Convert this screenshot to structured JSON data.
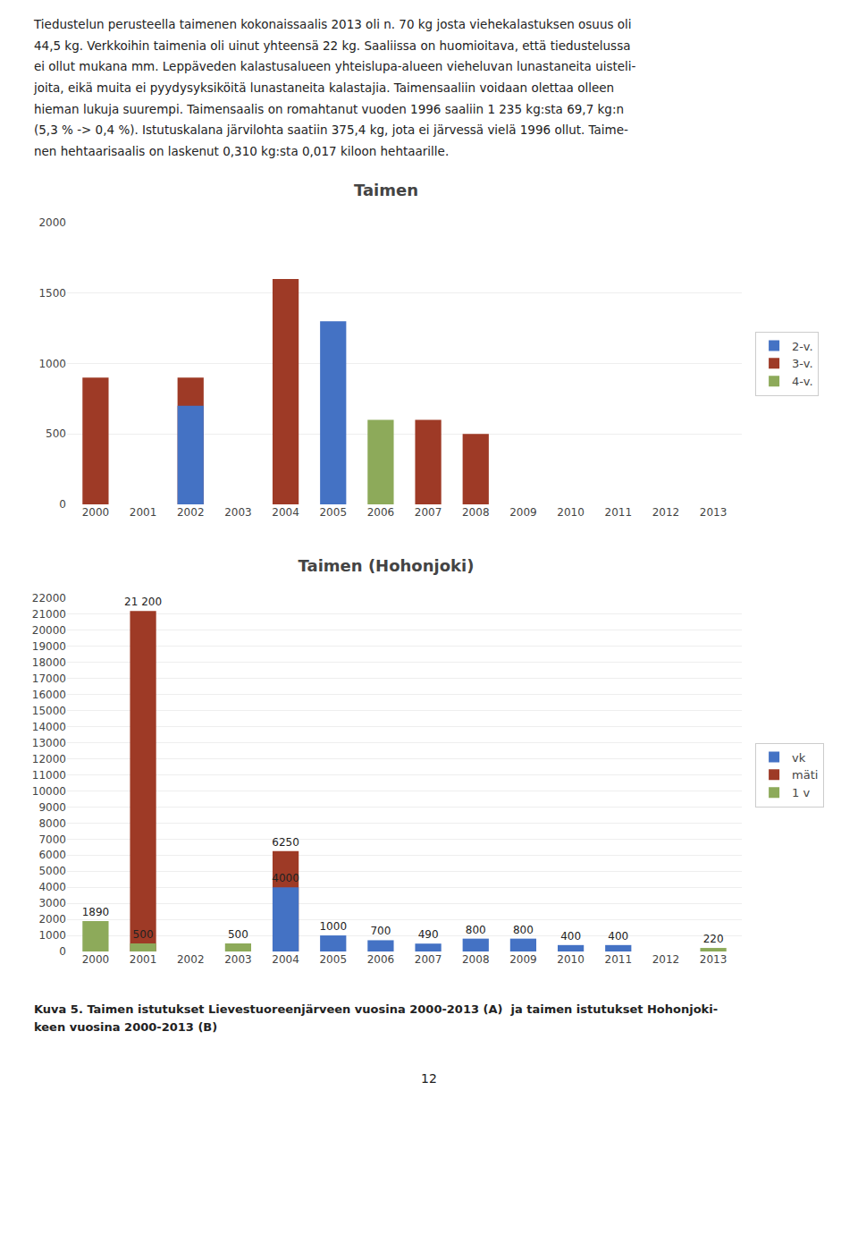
{
  "paragraph": "Tiedustelun perusteella taimenen kokonaissaalis 2013 oli n. 70 kg josta viehekalastuksen osuus oli\n44,5 kg. Verkkoihin taimenia oli uinut yhteensä 22 kg. Saaliissa on huomioitava, että tiedustelussa\nei ollut mukana mm. Leppäveden kalastusalueen yhteislupa-alueen vieheluvan lunastaneita uisteli-\njoita, eikä muita ei pyydysyksiköitä lunastaneita kalastajia. Taimensaaliin voidaan olettaa olleen\nhieman lukuja suurempi. Taimensaalis on romahtanut vuoden 1996 saaliin 1 235 kg:sta 69,7 kg:n\n(5,3 % -> 0,4 %). Istutuskalana järvilohta saatiin 375,4 kg, jota ei järvessä vielä 1996 ollut. Taime-\nnen hehtaarisaalis on laskenut 0,310 kg:sta 0,017 kiloon hehtaarille.",
  "caption": "Kuva 5. Taimen istutukset Lievestuoreenjärveen vuosina 2000-2013 (A)  ja taimen istutukset Hohonjoki-\nkeen vuosina 2000-2013 (B)",
  "page_number": "12",
  "chart_data": [
    {
      "type": "bar",
      "title": "Taimen",
      "categories": [
        "2000",
        "2001",
        "2002",
        "2003",
        "2004",
        "2005",
        "2006",
        "2007",
        "2008",
        "2009",
        "2010",
        "2011",
        "2012",
        "2013"
      ],
      "series": [
        {
          "name": "2-v.",
          "color": "#4472C4",
          "values": [
            0,
            0,
            700,
            0,
            0,
            1300,
            0,
            0,
            0,
            0,
            0,
            0,
            0,
            0
          ]
        },
        {
          "name": "3-v.",
          "color": "#9E3A26",
          "values": [
            900,
            0,
            900,
            0,
            1600,
            0,
            0,
            600,
            500,
            0,
            0,
            0,
            0,
            0
          ]
        },
        {
          "name": "4-v.",
          "color": "#8DAA5A",
          "values": [
            0,
            0,
            0,
            0,
            0,
            0,
            600,
            0,
            0,
            0,
            0,
            0,
            0,
            0
          ]
        }
      ],
      "ylim": [
        0,
        2000
      ],
      "yticks": [
        0,
        500,
        1000,
        1500,
        2000
      ],
      "grid": true,
      "legend": "right",
      "stacked": false,
      "data_labels": false
    },
    {
      "type": "bar",
      "title": "Taimen (Hohonjoki)",
      "categories": [
        "2000",
        "2001",
        "2002",
        "2003",
        "2004",
        "2005",
        "2006",
        "2007",
        "2008",
        "2009",
        "2010",
        "2011",
        "2012",
        "2013"
      ],
      "series": [
        {
          "name": "vk",
          "color": "#4472C4",
          "values": [
            0,
            0,
            0,
            0,
            4000,
            1000,
            700,
            490,
            800,
            800,
            400,
            400,
            0,
            0
          ],
          "value_labels": [
            null,
            null,
            null,
            null,
            "4000",
            "1000",
            "700",
            "490",
            "800",
            "800",
            "400",
            "400",
            null,
            null
          ]
        },
        {
          "name": "mäti",
          "color": "#9E3A26",
          "values": [
            0,
            21200,
            0,
            0,
            6250,
            0,
            0,
            0,
            0,
            0,
            0,
            0,
            0,
            0
          ],
          "value_labels": [
            null,
            "21 200",
            null,
            null,
            "6250",
            null,
            null,
            null,
            null,
            null,
            null,
            null,
            null,
            null
          ]
        },
        {
          "name": "1 v",
          "color": "#8DAA5A",
          "values": [
            1890,
            500,
            0,
            500,
            0,
            0,
            0,
            0,
            0,
            0,
            0,
            0,
            0,
            220
          ],
          "value_labels": [
            "1890",
            "500",
            null,
            "500",
            null,
            null,
            null,
            null,
            null,
            null,
            null,
            null,
            null,
            "220"
          ]
        }
      ],
      "ylim": [
        0,
        22000
      ],
      "yticks": [
        0,
        1000,
        2000,
        3000,
        4000,
        5000,
        6000,
        7000,
        8000,
        9000,
        10000,
        11000,
        12000,
        13000,
        14000,
        15000,
        16000,
        17000,
        18000,
        19000,
        20000,
        21000,
        22000
      ],
      "grid": true,
      "legend": "right",
      "stacked": false,
      "data_labels": true
    }
  ]
}
